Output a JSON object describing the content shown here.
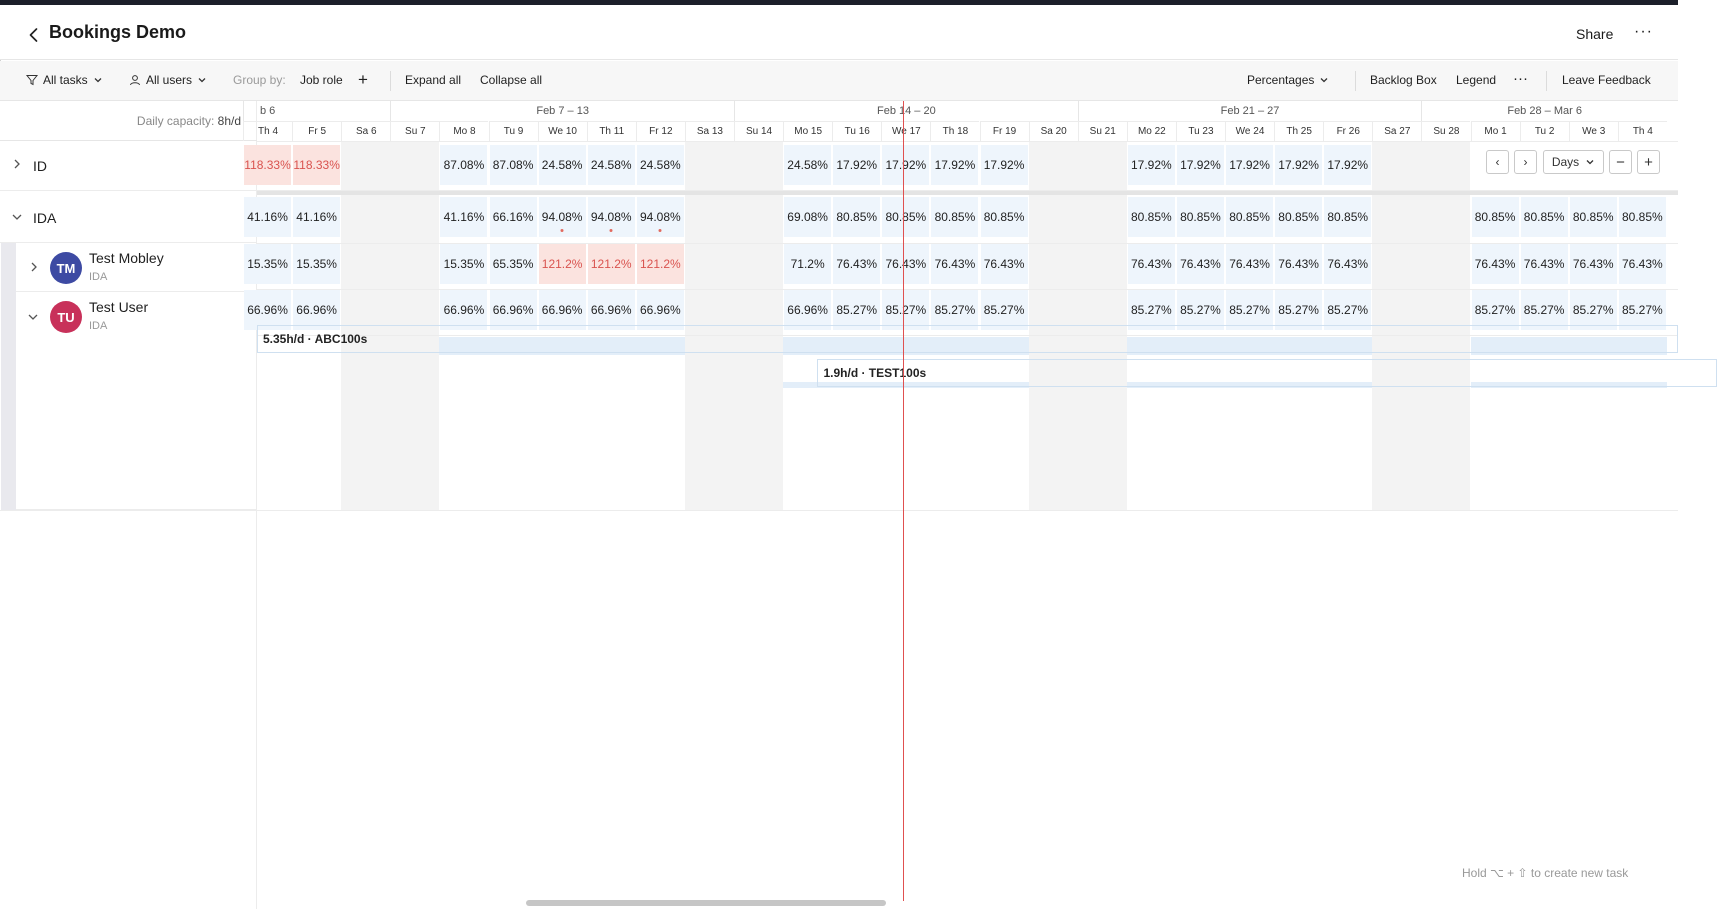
{
  "header": {
    "title": "Bookings Demo",
    "share_label": "Share",
    "more_label": "···"
  },
  "toolbar": {
    "all_tasks": "All tasks",
    "all_users": "All users",
    "group_by_label": "Group by:",
    "group_by_value": "Job role",
    "add_label": "+",
    "expand_all": "Expand all",
    "collapse_all": "Collapse all",
    "percentages": "Percentages",
    "backlog_box": "Backlog Box",
    "legend": "Legend",
    "more": "···",
    "leave_feedback": "Leave Feedback"
  },
  "capacity": {
    "label": "Daily capacity:",
    "value": "8h/d"
  },
  "weeks": [
    "b 6",
    "Feb 7 – 13",
    "Feb 14 – 20",
    "Feb 21 – 27",
    "Feb 28 – Mar 6"
  ],
  "days": [
    "Th 4",
    "Fr 5",
    "Sa 6",
    "Su 7",
    "Mo 8",
    "Tu 9",
    "We 10",
    "Th 11",
    "Fr 12",
    "Sa 13",
    "Su 14",
    "Mo 15",
    "Tu 16",
    "We 17",
    "Th 18",
    "Fr 19",
    "Sa 20",
    "Su 21",
    "Mo 22",
    "Tu 23",
    "We 24",
    "Th 25",
    "Fr 26",
    "Sa 27",
    "Su 28",
    "Mo 1",
    "Tu 2",
    "We 3",
    "Th 4"
  ],
  "groups": [
    {
      "name": "ID",
      "values": [
        "118.33%",
        "118.33%",
        "",
        "",
        "87.08%",
        "87.08%",
        "24.58%",
        "24.58%",
        "24.58%",
        "",
        "",
        "24.58%",
        "17.92%",
        "17.92%",
        "17.92%",
        "17.92%",
        "",
        "",
        "17.92%",
        "17.92%",
        "17.92%",
        "17.92%",
        "17.92%",
        "",
        "",
        "",
        "",
        "",
        ""
      ]
    },
    {
      "name": "IDA",
      "values": [
        "41.16%",
        "41.16%",
        "",
        "",
        "41.16%",
        "66.16%",
        "94.08%",
        "94.08%",
        "94.08%",
        "",
        "",
        "69.08%",
        "80.85%",
        "80.85%",
        "80.85%",
        "80.85%",
        "",
        "",
        "80.85%",
        "80.85%",
        "80.85%",
        "80.85%",
        "80.85%",
        "",
        "",
        "80.85%",
        "80.85%",
        "80.85%",
        "80.85%"
      ]
    }
  ],
  "users": [
    {
      "initials": "TM",
      "name": "Test Mobley",
      "role": "IDA",
      "color": "#3d4aa3",
      "values": [
        "15.35%",
        "15.35%",
        "",
        "",
        "15.35%",
        "65.35%",
        "121.2%",
        "121.2%",
        "121.2%",
        "",
        "",
        "71.2%",
        "76.43%",
        "76.43%",
        "76.43%",
        "76.43%",
        "",
        "",
        "76.43%",
        "76.43%",
        "76.43%",
        "76.43%",
        "76.43%",
        "",
        "",
        "76.43%",
        "76.43%",
        "76.43%",
        "76.43%"
      ]
    },
    {
      "initials": "TU",
      "name": "Test User",
      "role": "IDA",
      "color": "#c8315a",
      "values": [
        "66.96%",
        "66.96%",
        "",
        "",
        "66.96%",
        "66.96%",
        "66.96%",
        "66.96%",
        "66.96%",
        "",
        "",
        "66.96%",
        "85.27%",
        "85.27%",
        "85.27%",
        "85.27%",
        "",
        "",
        "85.27%",
        "85.27%",
        "85.27%",
        "85.27%",
        "85.27%",
        "",
        "",
        "85.27%",
        "85.27%",
        "85.27%",
        "85.27%"
      ]
    }
  ],
  "bookings": [
    {
      "label": "5.35h/d · ABC100s"
    },
    {
      "label": "1.9h/d · TEST100s"
    }
  ],
  "nav": {
    "prev": "‹",
    "next": "›",
    "zoom": "Days",
    "minus": "−",
    "plus": "+"
  },
  "hint": "Hold ⌥ + ⇧ to create new task",
  "colors": {
    "today_line": "#e05050",
    "over_capacity": "#d9534f"
  }
}
